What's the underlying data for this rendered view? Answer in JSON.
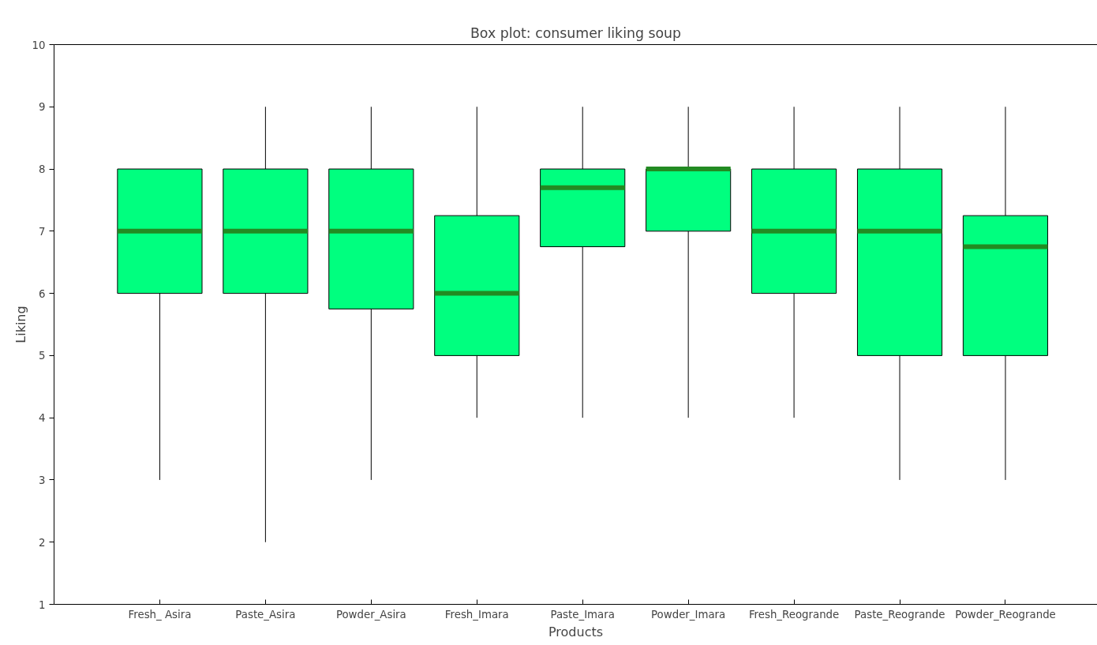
{
  "chart_data": {
    "type": "box",
    "title": "Box plot: consumer liking soup",
    "xlabel": "Products",
    "ylabel": "Liking",
    "categories": [
      "Fresh_ Asira",
      "Paste_Asira",
      "Powder_Asira",
      "Fresh_Imara",
      "Paste_Imara",
      "Powder_Imara",
      "Fresh_Reogrande",
      "Paste_Reogrande",
      "Powder_Reogrande"
    ],
    "boxes": [
      {
        "low": 3,
        "q1": 6,
        "median": 7,
        "q3": 8,
        "high": 8
      },
      {
        "low": 2,
        "q1": 6,
        "median": 7,
        "q3": 8,
        "high": 9
      },
      {
        "low": 3,
        "q1": 5.75,
        "median": 7,
        "q3": 8,
        "high": 9
      },
      {
        "low": 4,
        "q1": 5,
        "median": 6,
        "q3": 7.25,
        "high": 9
      },
      {
        "low": 4,
        "q1": 6.75,
        "median": 7.7,
        "q3": 8,
        "high": 9
      },
      {
        "low": 4,
        "q1": 7,
        "median": 8,
        "q3": 8,
        "high": 9
      },
      {
        "low": 4,
        "q1": 6,
        "median": 7,
        "q3": 8,
        "high": 9
      },
      {
        "low": 3,
        "q1": 5,
        "median": 7,
        "q3": 8,
        "high": 9
      },
      {
        "low": 3,
        "q1": 5,
        "median": 6.75,
        "q3": 7.25,
        "high": 9
      }
    ],
    "color": "#00ff7f",
    "ylim": [
      1,
      10
    ],
    "yticks": [
      1,
      2,
      3,
      4,
      5,
      6,
      7,
      8,
      9,
      10
    ],
    "grid": false
  }
}
